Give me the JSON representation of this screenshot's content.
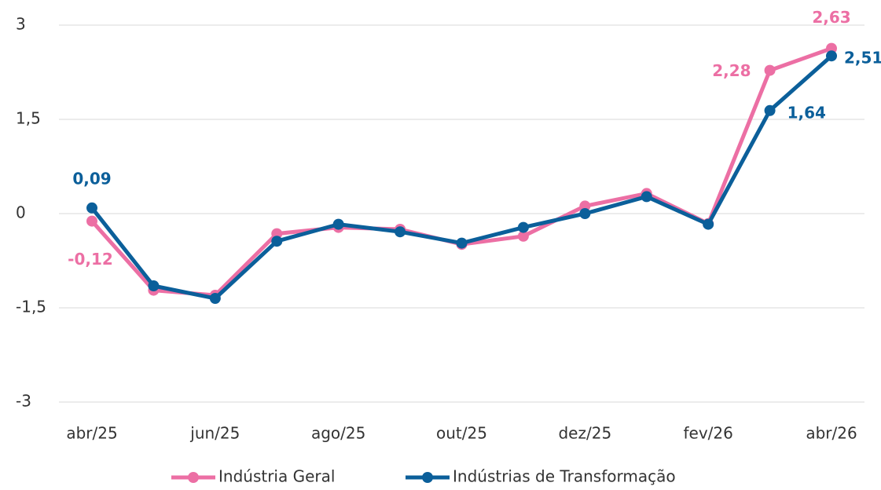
{
  "chart_data": {
    "type": "line",
    "categories": [
      "abr/25",
      null,
      "jun/25",
      null,
      "ago/25",
      null,
      "out/25",
      null,
      "dez/25",
      null,
      "fev/26",
      null,
      "abr/26"
    ],
    "series": [
      {
        "name": "Indústria Geral",
        "color": "#ec6fa4",
        "values": [
          -0.12,
          -1.22,
          -1.3,
          -0.32,
          -0.22,
          -0.25,
          -0.49,
          -0.36,
          0.12,
          0.32,
          -0.16,
          2.28,
          2.63
        ],
        "value_labels": [
          "-0,12",
          null,
          null,
          null,
          null,
          null,
          null,
          null,
          null,
          null,
          null,
          "2,28",
          "2,63"
        ]
      },
      {
        "name": "Indústrias de Transformação",
        "color": "#0b5f9a",
        "values": [
          0.09,
          -1.15,
          -1.35,
          -0.44,
          -0.17,
          -0.29,
          -0.47,
          -0.22,
          0.0,
          0.27,
          -0.17,
          1.64,
          2.51
        ],
        "value_labels": [
          "0,09",
          null,
          null,
          null,
          null,
          null,
          null,
          null,
          null,
          null,
          null,
          "1,64",
          "2,51"
        ]
      }
    ],
    "ylim": [
      -3,
      3
    ],
    "yticks": [
      3,
      {
        "value": 1.5,
        "label": "1,5"
      },
      0,
      {
        "value": -1.5,
        "label": "-1,5"
      },
      -3
    ],
    "grid": true,
    "legend": "bottom"
  }
}
